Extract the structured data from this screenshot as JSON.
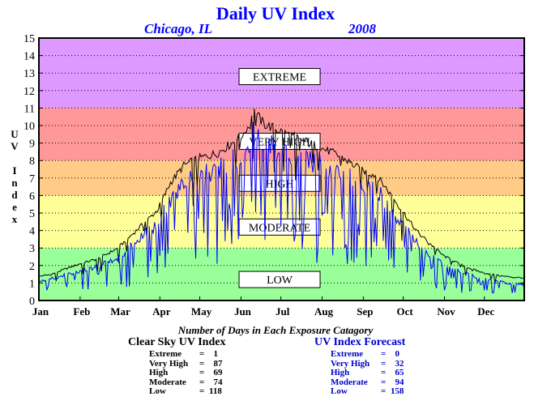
{
  "title": "Daily UV Index",
  "location": "Chicago, IL",
  "year": "2008",
  "chart_data": {
    "type": "line",
    "ylabel": "UV Index",
    "ylim": [
      0,
      15
    ],
    "yticks": [
      "0",
      "1",
      "2",
      "3",
      "4",
      "5",
      "6",
      "7",
      "8",
      "9",
      "10",
      "11",
      "12",
      "13",
      "14",
      "15"
    ],
    "months": [
      "Jan",
      "Feb",
      "Mar",
      "Apr",
      "May",
      "Jun",
      "Jul",
      "Aug",
      "Sep",
      "Oct",
      "Nov",
      "Dec"
    ],
    "x_range_days": [
      1,
      366
    ],
    "bands": [
      {
        "label": "LOW",
        "from": 0,
        "to": 3,
        "color": "#99ff99"
      },
      {
        "label": "MODERATE",
        "from": 3,
        "to": 6,
        "color": "#ffff99"
      },
      {
        "label": "HIGH",
        "from": 6,
        "to": 8,
        "color": "#ffcc88"
      },
      {
        "label": "VERY HIGH",
        "from": 8,
        "to": 11,
        "color": "#ff9999"
      },
      {
        "label": "EXTREME",
        "from": 11,
        "to": 15,
        "color": "#dd99ff"
      }
    ],
    "band_label_positions": {
      "EXTREME": 12.8,
      "VERY HIGH": 9.1,
      "HIGH": 6.7,
      "MODERATE": 4.2,
      "LOW": 1.2
    },
    "series": [
      {
        "color": "#000000",
        "days": [
          1,
          10,
          20,
          31,
          45,
          60,
          75,
          90,
          100,
          110,
          121,
          135,
          152,
          158,
          162,
          170,
          182,
          195,
          213,
          220,
          230,
          244,
          255,
          262,
          274,
          285,
          305,
          320,
          335,
          350,
          366
        ],
        "values": [
          1.4,
          1.5,
          1.8,
          2.1,
          2.4,
          3.0,
          4.1,
          5.2,
          6.8,
          7.8,
          8.2,
          8.5,
          9.4,
          10.0,
          11.0,
          10.2,
          9.8,
          9.4,
          8.8,
          8.6,
          8.2,
          7.5,
          7.2,
          6.5,
          5.2,
          4.0,
          2.6,
          2.0,
          1.6,
          1.4,
          1.3
        ]
      },
      {
        "color": "#0000ff",
        "days": [
          1,
          10,
          20,
          31,
          45,
          60,
          75,
          90,
          100,
          110,
          121,
          135,
          152,
          158,
          162,
          170,
          182,
          195,
          213,
          220,
          230,
          244,
          255,
          262,
          274,
          285,
          305,
          320,
          335,
          350,
          366
        ],
        "values": [
          1.1,
          1.3,
          1.5,
          1.8,
          2.1,
          2.6,
          3.6,
          4.7,
          6.0,
          7.1,
          7.6,
          8.0,
          8.8,
          9.5,
          10.2,
          9.6,
          9.2,
          8.9,
          8.3,
          8.1,
          7.7,
          7.0,
          6.7,
          6.0,
          4.6,
          3.5,
          2.2,
          1.7,
          1.3,
          1.1,
          1.0
        ]
      }
    ]
  },
  "summary": {
    "caption": "Number of Days in Each Exposure Catagory",
    "clear_sky": {
      "header": "Clear Sky UV Index",
      "rows": [
        {
          "label": "Extreme",
          "value": "1"
        },
        {
          "label": "Very High",
          "value": "87"
        },
        {
          "label": "High",
          "value": "69"
        },
        {
          "label": "Moderate",
          "value": "74"
        },
        {
          "label": "Low",
          "value": "118"
        }
      ]
    },
    "forecast": {
      "header": "UV Index Forecast",
      "rows": [
        {
          "label": "Extreme",
          "value": "0"
        },
        {
          "label": "Very High",
          "value": "32"
        },
        {
          "label": "High",
          "value": "65"
        },
        {
          "label": "Moderate",
          "value": "94"
        },
        {
          "label": "Low",
          "value": "158"
        }
      ]
    }
  }
}
